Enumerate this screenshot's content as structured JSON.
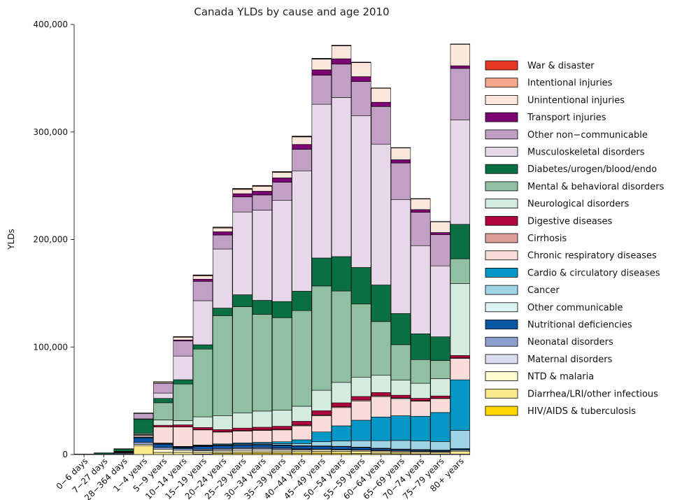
{
  "chart_data": {
    "type": "bar",
    "stacked": true,
    "title": "Canada YLDs by cause and age 2010",
    "xlabel": "",
    "ylabel": "YLDs",
    "ylim": [
      0,
      400000
    ],
    "yticks": [
      0,
      100000,
      200000,
      300000,
      400000
    ],
    "ytick_labels": [
      "0",
      "100,000",
      "200,000",
      "300,000",
      "400,000"
    ],
    "grid": false,
    "legend_position": "right",
    "categories": [
      "0-6 days",
      "7-27 days",
      "28-364 days",
      "1-4 years",
      "5-9 years",
      "10-14 years",
      "15-19 years",
      "20-24 years",
      "25-29 years",
      "30-34 years",
      "35-39 years",
      "40-44 years",
      "45-49 years",
      "50-54 years",
      "55-59 years",
      "60-64 years",
      "65-69 years",
      "70-74 years",
      "75-79 years",
      "80+ years"
    ],
    "category_labels": [
      "0−6 days",
      "7−27 days",
      "28−364 days",
      "1−4 years",
      "5−9 years",
      "10−14 years",
      "15−19 years",
      "20−24 years",
      "25−29 years",
      "30−34 years",
      "35−39 years",
      "40−44 years",
      "45−49 years",
      "50−54 years",
      "55−59 years",
      "60−64 years",
      "65−69 years",
      "70−74 years",
      "75−79 years",
      "80+ years"
    ],
    "series": [
      {
        "name": "HIV/AIDS & tuberculosis",
        "color": "#ffd700",
        "values": [
          0,
          0,
          0,
          0,
          0,
          0,
          500,
          1000,
          1200,
          1300,
          1300,
          1300,
          1300,
          1200,
          1000,
          800,
          700,
          600,
          500,
          400
        ]
      },
      {
        "name": "Diarrhea/LRI/other infectious",
        "color": "#fce98b",
        "values": [
          100,
          200,
          500,
          8000,
          2000,
          2000,
          1500,
          1200,
          1300,
          1300,
          1400,
          1500,
          1700,
          1800,
          1800,
          1800,
          1600,
          1500,
          1500,
          2400
        ]
      },
      {
        "name": "NTD & malaria",
        "color": "#fffbd1",
        "values": [
          0,
          0,
          0,
          1500,
          3000,
          2000,
          1500,
          1500,
          1500,
          1500,
          1500,
          1500,
          1500,
          1300,
          1200,
          1000,
          900,
          800,
          700,
          1200
        ]
      },
      {
        "name": "Maternal disorders",
        "color": "#dcdcf0",
        "values": [
          0,
          0,
          0,
          0,
          0,
          0,
          300,
          1000,
          1500,
          1500,
          1000,
          300,
          0,
          0,
          0,
          0,
          0,
          0,
          0,
          0
        ]
      },
      {
        "name": "Neonatal disorders",
        "color": "#8ca0cf",
        "values": [
          100,
          200,
          800,
          2000,
          1600,
          1400,
          1200,
          1000,
          900,
          900,
          800,
          700,
          600,
          500,
          500,
          400,
          300,
          300,
          200,
          100
        ]
      },
      {
        "name": "Nutritional deficiencies",
        "color": "#0a55a5",
        "values": [
          0,
          100,
          300,
          4000,
          3000,
          1000,
          2500,
          2500,
          2500,
          2500,
          2500,
          2500,
          2500,
          2500,
          2000,
          1500,
          1200,
          1000,
          800,
          1000
        ]
      },
      {
        "name": "Other communicable",
        "color": "#dcf4f4",
        "values": [
          0,
          0,
          300,
          500,
          500,
          400,
          400,
          400,
          400,
          400,
          400,
          400,
          400,
          400,
          400,
          400,
          400,
          400,
          400,
          400
        ]
      },
      {
        "name": "Cancer",
        "color": "#9ed4e5",
        "values": [
          0,
          0,
          100,
          200,
          300,
          400,
          500,
          600,
          700,
          800,
          1200,
          2000,
          4000,
          5000,
          6000,
          7000,
          8000,
          8000,
          8000,
          17000
        ]
      },
      {
        "name": "Cardio & circulatory diseases",
        "color": "#0598c6",
        "values": [
          0,
          0,
          100,
          200,
          300,
          400,
          500,
          700,
          900,
          1200,
          1800,
          3500,
          9000,
          14000,
          19000,
          22000,
          23000,
          23000,
          27000,
          47000
        ]
      },
      {
        "name": "Chronic respiratory diseases",
        "color": "#fadcd8",
        "values": [
          0,
          0,
          500,
          1500,
          15000,
          18000,
          14000,
          11000,
          11000,
          11000,
          11000,
          13000,
          15000,
          17000,
          18000,
          19000,
          16000,
          14000,
          13000,
          20000
        ]
      },
      {
        "name": "Cirrhosis",
        "color": "#dc9e98",
        "values": [
          0,
          0,
          0,
          0,
          0,
          0,
          200,
          300,
          400,
          500,
          600,
          700,
          800,
          900,
          900,
          800,
          600,
          500,
          400,
          300
        ]
      },
      {
        "name": "Digestive diseases",
        "color": "#b0053f",
        "values": [
          0,
          0,
          200,
          300,
          1500,
          2000,
          2000,
          2000,
          2300,
          2500,
          2800,
          3500,
          4000,
          3500,
          3200,
          3000,
          2500,
          2200,
          2000,
          2300
        ]
      },
      {
        "name": "Neurological disorders",
        "color": "#d4ebe0",
        "values": [
          0,
          100,
          200,
          500,
          5000,
          4000,
          10000,
          13000,
          14000,
          15000,
          15000,
          14000,
          19000,
          19000,
          18000,
          16000,
          14000,
          14000,
          16000,
          67000
        ]
      },
      {
        "name": "Mental & behavioral disorders",
        "color": "#90bfa1",
        "values": [
          0,
          0,
          100,
          1000,
          16000,
          34000,
          63000,
          93000,
          99000,
          90000,
          86000,
          89000,
          97000,
          85000,
          68000,
          50000,
          33000,
          22000,
          17000,
          23000
        ]
      },
      {
        "name": "Diabetes/urogen/blood/endo",
        "color": "#0a7043",
        "values": [
          300,
          1000,
          2000,
          13000,
          4000,
          4000,
          4000,
          7000,
          11000,
          13000,
          15000,
          18000,
          26000,
          32000,
          34000,
          34000,
          29000,
          24000,
          22000,
          32000
        ]
      },
      {
        "name": "Musculoskeletal disorders",
        "color": "#e6d8e9",
        "values": [
          0,
          0,
          0,
          500,
          5000,
          22000,
          41000,
          55000,
          77000,
          84000,
          94000,
          112000,
          143000,
          148000,
          141000,
          131000,
          106000,
          82000,
          66000,
          97000
        ]
      },
      {
        "name": "Other non−communicable",
        "color": "#c29fc5",
        "values": [
          0,
          0,
          200,
          5000,
          9000,
          14000,
          18000,
          13000,
          14000,
          14000,
          17000,
          20000,
          27000,
          31000,
          32000,
          35000,
          34000,
          31000,
          29000,
          48000
        ]
      },
      {
        "name": "Transport injuries",
        "color": "#7b0572",
        "values": [
          0,
          0,
          0,
          200,
          300,
          1000,
          2000,
          3000,
          3000,
          3500,
          4000,
          4500,
          5000,
          5000,
          4500,
          4000,
          3000,
          2500,
          2000,
          2500
        ]
      },
      {
        "name": "Unintentional injuries",
        "color": "#fde7dd",
        "values": [
          0,
          0,
          100,
          300,
          1000,
          2500,
          3000,
          3500,
          4000,
          4500,
          5000,
          7000,
          10000,
          12000,
          13000,
          13000,
          11000,
          10000,
          10000,
          20000
        ]
      },
      {
        "name": "Intentional injuries",
        "color": "#f7a98d",
        "values": [
          0,
          0,
          0,
          0,
          200,
          500,
          700,
          600,
          600,
          600,
          600,
          500,
          400,
          300,
          200,
          100,
          100,
          100,
          100,
          100
        ]
      },
      {
        "name": "War & disaster",
        "color": "#e83724",
        "values": [
          0,
          0,
          0,
          0,
          100,
          200,
          300,
          300,
          300,
          300,
          300,
          300,
          300,
          300,
          300,
          200,
          200,
          200,
          200,
          200
        ]
      }
    ]
  }
}
